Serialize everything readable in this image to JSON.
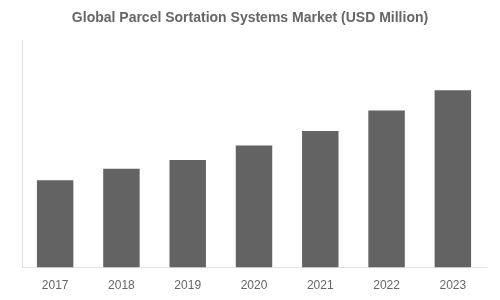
{
  "chart_data": {
    "type": "bar",
    "title": "Global Parcel Sortation Systems Market (USD Million)",
    "categories": [
      "2017",
      "2018",
      "2019",
      "2020",
      "2021",
      "2022",
      "2023"
    ],
    "values": [
      3.0,
      3.4,
      3.7,
      4.2,
      4.7,
      5.4,
      6.1
    ],
    "color": "#636363",
    "ylim": [
      0,
      7.8
    ],
    "grid": false,
    "tick_labels": "x"
  }
}
